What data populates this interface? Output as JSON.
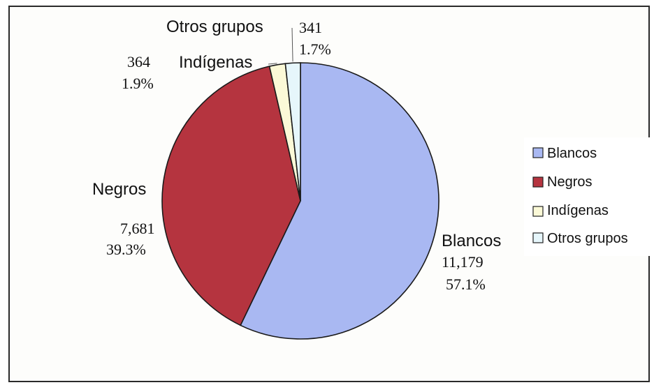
{
  "chart_data": {
    "type": "pie",
    "categories": [
      "Blancos",
      "Negros",
      "Indígenas",
      "Otros grupos"
    ],
    "values": [
      11179,
      7681,
      364,
      341
    ],
    "value_labels": [
      "11,179",
      "7,681",
      "364",
      "341"
    ],
    "percent_labels": [
      "57.1%",
      "39.3%",
      "1.9%",
      "1.7%"
    ],
    "colors": [
      "#a9b8f2",
      "#b5343f",
      "#fbf9d7",
      "#e6f6fb"
    ],
    "legend": {
      "position": "right",
      "entries": [
        "Blancos",
        "Negros",
        "Indígenas",
        "Otros grupos"
      ]
    },
    "title": ""
  }
}
